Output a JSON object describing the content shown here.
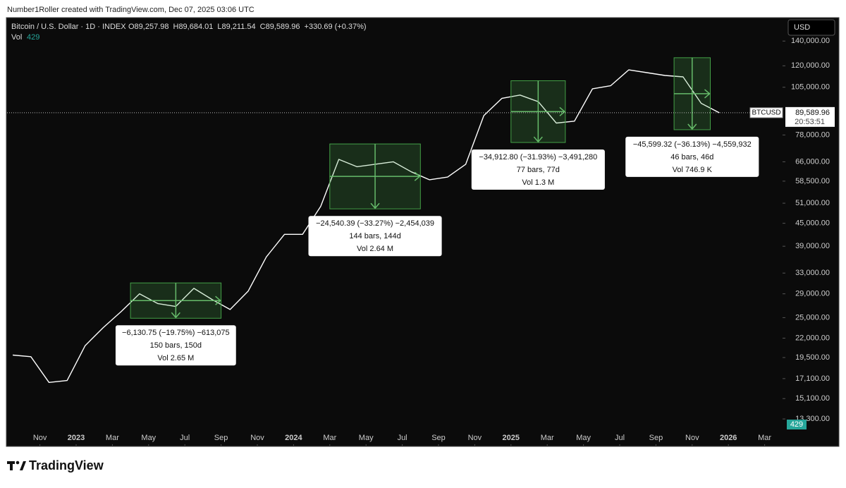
{
  "page": {
    "credit": "Number1Roller created with TradingView.com, Dec 07, 2025 03:06 UTC",
    "logo": "TradingView",
    "currency": "USD"
  },
  "chart_data": {
    "type": "line",
    "title": "Bitcoin / U.S. Dollar · 1D · INDEX",
    "ohlc": [
      {
        "value": 89257.98,
        "label": "O89,257.98"
      },
      {
        "value": 89684.01,
        "label": "H89,684.01"
      },
      {
        "value": 89211.54,
        "label": "L89,211.54"
      },
      {
        "value": 89589.96,
        "label": "C89,589.96"
      },
      {
        "value": 330.69,
        "label": "+330.69 (+0.37%)"
      }
    ],
    "volume_label": "Vol",
    "volume": 429,
    "x": [
      "2022-09",
      "2022-10",
      "2022-11",
      "2022-12",
      "2023-01",
      "2023-02",
      "2023-03",
      "2023-04",
      "2023-05",
      "2023-06",
      "2023-07",
      "2023-08",
      "2023-09",
      "2023-10",
      "2023-11",
      "2023-12",
      "2024-01",
      "2024-02",
      "2024-03",
      "2024-04",
      "2024-05",
      "2024-06",
      "2024-07",
      "2024-08",
      "2024-09",
      "2024-10",
      "2024-11",
      "2024-12",
      "2025-01",
      "2025-02",
      "2025-03",
      "2025-04",
      "2025-05",
      "2025-06",
      "2025-07",
      "2025-08",
      "2025-09",
      "2025-10",
      "2025-11",
      "2025-12"
    ],
    "series": [
      {
        "name": "BTCUSD",
        "color": "#ffffff",
        "values": [
          19800,
          19600,
          16700,
          16900,
          21000,
          23500,
          26000,
          29000,
          27300,
          26800,
          30000,
          28000,
          26300,
          29500,
          36500,
          42000,
          42000,
          50000,
          67000,
          64000,
          65000,
          66000,
          62000,
          59000,
          60000,
          65000,
          88000,
          98000,
          100000,
          96000,
          84000,
          85000,
          104000,
          106000,
          117000,
          115000,
          113000,
          112000,
          95000,
          89590
        ]
      }
    ],
    "xlim": [
      "2022-09",
      "2026-04"
    ],
    "xticks": [
      {
        "value": "2022-11",
        "label": "Nov"
      },
      {
        "value": "2023-01",
        "label": "2023"
      },
      {
        "value": "2023-03",
        "label": "Mar"
      },
      {
        "value": "2023-05",
        "label": "May"
      },
      {
        "value": "2023-07",
        "label": "Jul"
      },
      {
        "value": "2023-09",
        "label": "Sep"
      },
      {
        "value": "2023-11",
        "label": "Nov"
      },
      {
        "value": "2024-01",
        "label": "2024"
      },
      {
        "value": "2024-03",
        "label": "Mar"
      },
      {
        "value": "2024-05",
        "label": "May"
      },
      {
        "value": "2024-07",
        "label": "Jul"
      },
      {
        "value": "2024-09",
        "label": "Sep"
      },
      {
        "value": "2024-11",
        "label": "Nov"
      },
      {
        "value": "2025-01",
        "label": "2025"
      },
      {
        "value": "2025-03",
        "label": "Mar"
      },
      {
        "value": "2025-05",
        "label": "May"
      },
      {
        "value": "2025-07",
        "label": "Jul"
      },
      {
        "value": "2025-09",
        "label": "Sep"
      },
      {
        "value": "2025-11",
        "label": "Nov"
      },
      {
        "value": "2026-01",
        "label": "2026"
      },
      {
        "value": "2026-03",
        "label": "Mar"
      }
    ],
    "ylim": [
      11260,
      162000
    ],
    "log_scale": true,
    "yticks": [
      {
        "value": 140000,
        "label": "140,000.00"
      },
      {
        "value": 120000,
        "label": "120,000.00"
      },
      {
        "value": 105000,
        "label": "105,000.00"
      },
      {
        "value": 78000,
        "label": "78,000.00"
      },
      {
        "value": 66000,
        "label": "66,000.00"
      },
      {
        "value": 58500,
        "label": "58,500.00"
      },
      {
        "value": 51000,
        "label": "51,000.00"
      },
      {
        "value": 45000,
        "label": "45,000.00"
      },
      {
        "value": 39000,
        "label": "39,000.00"
      },
      {
        "value": 33000,
        "label": "33,000.00"
      },
      {
        "value": 29000,
        "label": "29,000.00"
      },
      {
        "value": 25000,
        "label": "25,000.00"
      },
      {
        "value": 22000,
        "label": "22,000.00"
      },
      {
        "value": 19500,
        "label": "19,500.00"
      },
      {
        "value": 17100,
        "label": "17,100.00"
      },
      {
        "value": 15100,
        "label": "15,100.00"
      },
      {
        "value": 13300,
        "label": "13,300.00"
      }
    ],
    "last": {
      "value": 89589.96,
      "label": "89,589.96"
    },
    "countdown": "20:53:51",
    "measures": [
      {
        "from": "2023-04",
        "to": "2023-08",
        "high": 31036,
        "low": 24905,
        "change": "−6,130.75 (−19.75%) −613,075",
        "bars": "150 bars, 150d",
        "volume": "Vol 2.65 M"
      },
      {
        "from": "2024-03",
        "to": "2024-07",
        "high": 73760,
        "low": 49220,
        "change": "−24,540.39 (−33.27%) −2,454,039",
        "bars": "144 bars, 144d",
        "volume": "Vol 2.64 M"
      },
      {
        "from": "2025-01",
        "to": "2025-03",
        "high": 109340,
        "low": 74430,
        "change": "−34,912.80 (−31.93%) −3,491,280",
        "bars": "77 bars, 77d",
        "volume": "Vol 1.3 M"
      },
      {
        "from": "2025-10",
        "to": "2025-11",
        "high": 126200,
        "low": 80600,
        "change": "−45,599.32 (−36.13%) −4,559,932",
        "bars": "46 bars, 46d",
        "volume": "Vol 746.9 K"
      }
    ]
  }
}
